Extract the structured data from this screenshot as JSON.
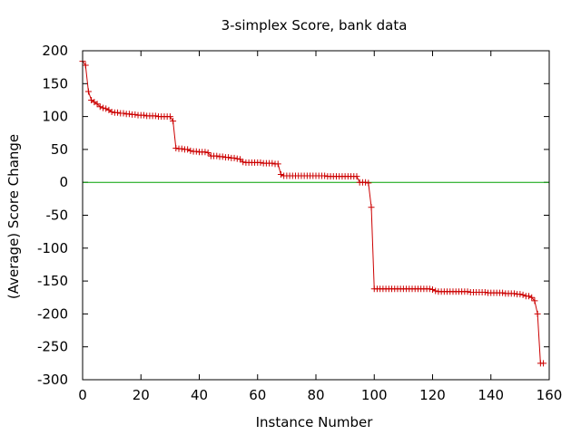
{
  "chart_data": {
    "type": "line",
    "title": "3-simplex Score, bank data",
    "xlabel": "Instance Number",
    "ylabel": "(Average) Score Change",
    "xlim": [
      0,
      160
    ],
    "ylim": [
      -300,
      200
    ],
    "xticks": [
      0,
      20,
      40,
      60,
      80,
      100,
      120,
      140,
      160
    ],
    "yticks": [
      200,
      150,
      100,
      50,
      0,
      -50,
      -100,
      -150,
      -200,
      -250,
      -300
    ],
    "grid": false,
    "legend": "none",
    "series": [
      {
        "color": "#cc0000",
        "marker": "+",
        "x": [
          0,
          1,
          2,
          3,
          4,
          5,
          6,
          7,
          8,
          9,
          10,
          11,
          12,
          13,
          14,
          15,
          16,
          17,
          18,
          19,
          20,
          21,
          22,
          23,
          24,
          25,
          26,
          27,
          28,
          29,
          30,
          31,
          32,
          33,
          34,
          35,
          36,
          37,
          38,
          39,
          40,
          41,
          42,
          43,
          44,
          45,
          46,
          47,
          48,
          49,
          50,
          51,
          52,
          53,
          54,
          55,
          56,
          57,
          58,
          59,
          60,
          61,
          62,
          63,
          64,
          65,
          66,
          67,
          68,
          69,
          70,
          71,
          72,
          73,
          74,
          75,
          76,
          77,
          78,
          79,
          80,
          81,
          82,
          83,
          84,
          85,
          86,
          87,
          88,
          89,
          90,
          91,
          92,
          93,
          94,
          95,
          96,
          97,
          98,
          99,
          100,
          101,
          102,
          103,
          104,
          105,
          106,
          107,
          108,
          109,
          110,
          111,
          112,
          113,
          114,
          115,
          116,
          117,
          118,
          119,
          120,
          121,
          122,
          123,
          124,
          125,
          126,
          127,
          128,
          129,
          130,
          131,
          132,
          133,
          134,
          135,
          136,
          137,
          138,
          139,
          140,
          141,
          142,
          143,
          144,
          145,
          146,
          147,
          148,
          149,
          150,
          151,
          152,
          153,
          154,
          155,
          156,
          157,
          158
        ],
        "y": [
          184,
          178,
          138,
          125,
          122,
          119,
          115,
          113,
          112,
          110,
          107,
          106,
          106,
          105,
          105,
          104,
          104,
          103,
          103,
          102,
          102,
          102,
          101,
          101,
          101,
          101,
          100,
          100,
          100,
          100,
          100,
          93,
          52,
          51,
          51,
          50,
          50,
          48,
          47,
          47,
          46,
          46,
          46,
          45,
          40,
          40,
          40,
          39,
          39,
          38,
          38,
          37,
          37,
          36,
          35,
          31,
          30,
          30,
          30,
          30,
          30,
          30,
          29,
          29,
          29,
          29,
          28,
          28,
          12,
          10,
          10,
          10,
          10,
          10,
          10,
          10,
          10,
          10,
          10,
          10,
          10,
          10,
          10,
          10,
          9,
          9,
          9,
          9,
          9,
          9,
          9,
          9,
          9,
          9,
          9,
          0,
          0,
          0,
          -1,
          -38,
          -162,
          -162,
          -162,
          -162,
          -162,
          -162,
          -162,
          -162,
          -162,
          -162,
          -162,
          -162,
          -162,
          -162,
          -162,
          -162,
          -162,
          -162,
          -162,
          -162,
          -163,
          -165,
          -166,
          -166,
          -166,
          -166,
          -166,
          -166,
          -166,
          -166,
          -166,
          -166,
          -166,
          -167,
          -167,
          -167,
          -167,
          -167,
          -167,
          -168,
          -168,
          -168,
          -168,
          -168,
          -168,
          -169,
          -169,
          -169,
          -169,
          -170,
          -170,
          -171,
          -173,
          -173,
          -175,
          -180,
          -200,
          -275,
          -275
        ]
      }
    ],
    "reference_line": {
      "y": 0,
      "color": "#00a000"
    }
  }
}
